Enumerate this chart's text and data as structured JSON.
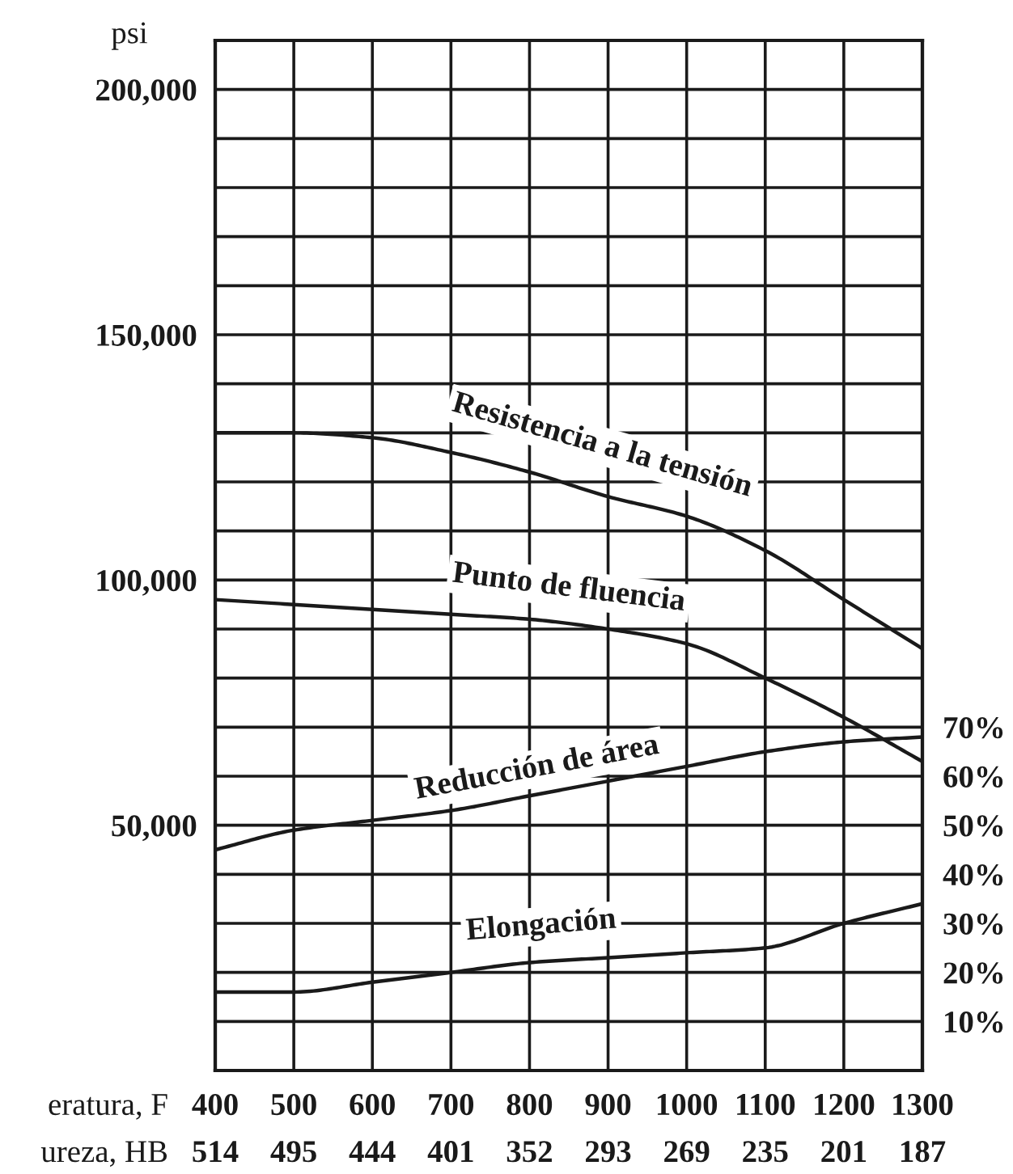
{
  "chart_data": {
    "type": "line",
    "ylabel": "psi",
    "xlabel": "eratura, F\nureza, HB",
    "categories": [
      "400\n514",
      "500\n495",
      "600\n444",
      "700\n401",
      "800\n352",
      "900\n293",
      "1000\n269",
      "1100\n235",
      "1200\n201",
      "1300\n187"
    ],
    "ylim": [
      0,
      210000
    ],
    "yticks": [
      {
        "value": 10000,
        "label": null
      },
      {
        "value": 20000,
        "label": null
      },
      {
        "value": 30000,
        "label": null
      },
      {
        "value": 40000,
        "label": null
      },
      {
        "value": 50000,
        "label": "50,000"
      },
      {
        "value": 60000,
        "label": null
      },
      {
        "value": 70000,
        "label": null
      },
      {
        "value": 80000,
        "label": null
      },
      {
        "value": 90000,
        "label": null
      },
      {
        "value": 100000,
        "label": "100,000"
      },
      {
        "value": 110000,
        "label": null
      },
      {
        "value": 120000,
        "label": null
      },
      {
        "value": 130000,
        "label": null
      },
      {
        "value": 140000,
        "label": null
      },
      {
        "value": 150000,
        "label": "150,000"
      },
      {
        "value": 160000,
        "label": null
      },
      {
        "value": 170000,
        "label": null
      },
      {
        "value": 180000,
        "label": null
      },
      {
        "value": 190000,
        "label": null
      },
      {
        "value": 200000,
        "label": "200,000"
      }
    ],
    "y2lim": [
      0,
      210
    ],
    "y2ticks": [
      {
        "value": 10,
        "label": "10%"
      },
      {
        "value": 20,
        "label": "20%"
      },
      {
        "value": 30,
        "label": "30%"
      },
      {
        "value": 40,
        "label": "40%"
      },
      {
        "value": 50,
        "label": "50%"
      },
      {
        "value": 60,
        "label": "60%"
      },
      {
        "value": 70,
        "label": "70%"
      }
    ],
    "grid": true,
    "line_style": "solid",
    "series": [
      {
        "name": "Resistencia a la tensión",
        "color": "#1a1a1a",
        "values": [
          130000,
          130000,
          129000,
          126000,
          122000,
          117000,
          113000,
          106000,
          96000,
          86000
        ]
      },
      {
        "name": "Punto de fluencia",
        "color": "#1a1a1a",
        "values": [
          96000,
          95000,
          94000,
          93000,
          92000,
          90000,
          87000,
          80000,
          72000,
          63000
        ]
      },
      {
        "name": "Reducción de área",
        "color": "#1a1a1a",
        "axis": "y2",
        "values": [
          45,
          49,
          51,
          53,
          56,
          59,
          62,
          65,
          67,
          68
        ]
      },
      {
        "name": "Elongación",
        "color": "#1a1a1a",
        "axis": "y2",
        "values": [
          16,
          16,
          18,
          20,
          22,
          23,
          24,
          25,
          30,
          34
        ]
      }
    ]
  }
}
